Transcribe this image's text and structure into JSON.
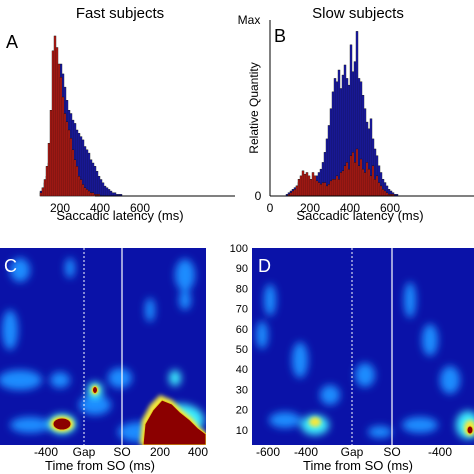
{
  "colors": {
    "red": "#c01a14",
    "blue": "#1a1ab4",
    "heat_bg": "#0a12a8",
    "heat_mid": "#1e8cff",
    "heat_hot": "#3cf0ff",
    "heat_yellow": "#f5e83c",
    "heat_max": "#8b0000"
  },
  "chart_data": [
    {
      "panel": "A",
      "type": "bar",
      "title": "Fast subjects",
      "xlabel": "Saccadic latency (ms)",
      "ylabel": "",
      "xlim": [
        0,
        750
      ],
      "xticks": [
        "200",
        "400",
        "600"
      ],
      "bin_width_ms": 10,
      "bin_start_ms": 100,
      "series": [
        {
          "color": "blue",
          "values": [
            3,
            5,
            8,
            12,
            20,
            30,
            45,
            62,
            70,
            78,
            80,
            74,
            66,
            58,
            52,
            50,
            46,
            44,
            40,
            38,
            36,
            34,
            30,
            28,
            26,
            22,
            20,
            18,
            15,
            12,
            10,
            8,
            6,
            5,
            4,
            3,
            2,
            2,
            1,
            1,
            1,
            0
          ]
        },
        {
          "color": "red",
          "values": [
            2,
            5,
            10,
            18,
            32,
            52,
            88,
            97,
            90,
            80,
            72,
            60,
            50,
            45,
            40,
            35,
            28,
            22,
            18,
            12,
            10,
            7,
            5,
            4,
            3,
            2,
            2,
            1,
            1,
            1,
            0,
            0,
            0,
            0,
            0,
            0,
            0,
            0,
            0,
            0,
            0,
            0
          ]
        }
      ]
    },
    {
      "panel": "B",
      "type": "bar",
      "title": "Slow subjects",
      "xlabel": "Saccadic latency (ms)",
      "ylabel": "Relative Quantity",
      "yticks": [
        "Max",
        "0"
      ],
      "xlim": [
        0,
        700
      ],
      "xticks": [
        "0",
        "200",
        "400",
        "600"
      ],
      "bin_width_ms": 10,
      "bin_start_ms": 80,
      "series": [
        {
          "color": "blue",
          "values": [
            1,
            2,
            3,
            4,
            5,
            6,
            8,
            8,
            10,
            9,
            10,
            10,
            8,
            9,
            10,
            12,
            14,
            16,
            20,
            26,
            34,
            42,
            52,
            62,
            70,
            68,
            75,
            64,
            72,
            78,
            70,
            66,
            90,
            74,
            80,
            98,
            70,
            68,
            60,
            52,
            44,
            40,
            46,
            34,
            28,
            24,
            18,
            14,
            10,
            8,
            6,
            4,
            3,
            2,
            1,
            1
          ]
        },
        {
          "color": "red",
          "values": [
            0,
            1,
            2,
            3,
            4,
            6,
            10,
            12,
            15,
            13,
            14,
            12,
            10,
            14,
            12,
            9,
            8,
            7,
            8,
            8,
            6,
            7,
            9,
            10,
            10,
            12,
            10,
            14,
            15,
            18,
            20,
            16,
            24,
            26,
            20,
            28,
            18,
            22,
            16,
            14,
            20,
            16,
            12,
            18,
            10,
            12,
            8,
            6,
            4,
            3,
            2,
            1,
            1,
            1,
            0,
            0
          ]
        }
      ]
    },
    {
      "panel": "C",
      "type": "heatmap",
      "xlabel": "Time from SO (ms)",
      "xticks": [
        "-400",
        "Gap",
        "SO",
        "200",
        "400"
      ],
      "markers": [
        "Gap",
        "SO"
      ],
      "description_colors": "jet colormap"
    },
    {
      "panel": "D",
      "type": "heatmap",
      "xlabel": "Time from SO (ms)",
      "ylabel_ticks": [
        "100",
        "90",
        "80",
        "70",
        "60",
        "50",
        "40",
        "30",
        "20",
        "10"
      ],
      "xticks": [
        "-600",
        "-400",
        "Gap",
        "SO",
        "-400"
      ],
      "markers": [
        "Gap",
        "SO"
      ],
      "description_colors": "jet colormap"
    }
  ],
  "panels": {
    "A": {
      "label": "A",
      "title": "Fast subjects",
      "xlabel": "Saccadic latency (ms)"
    },
    "B": {
      "label": "B",
      "title": "Slow subjects",
      "xlabel": "Saccadic latency (ms)",
      "ylabel": "Relative Quantity",
      "ymax": "Max",
      "ymin": "0"
    },
    "C": {
      "label": "C",
      "xlabel": "Time from SO (ms)"
    },
    "D": {
      "label": "D",
      "xlabel": "Time from SO (ms)"
    }
  }
}
